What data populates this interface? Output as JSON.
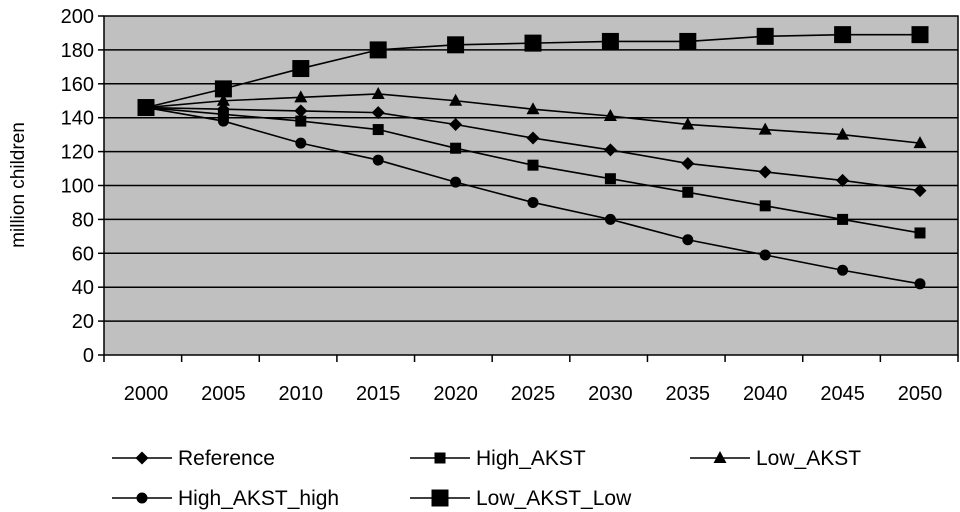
{
  "chart_data": {
    "type": "line",
    "title": "",
    "xlabel": "",
    "ylabel": "million children",
    "ylim": [
      0,
      200
    ],
    "yticks": [
      0,
      20,
      40,
      60,
      80,
      100,
      120,
      140,
      160,
      180,
      200
    ],
    "categories": [
      "2000",
      "2005",
      "2010",
      "2015",
      "2020",
      "2025",
      "2030",
      "2035",
      "2040",
      "2045",
      "2050"
    ],
    "grid": true,
    "plot_background": "#c0c0c0",
    "line_color": "#000000",
    "legend_position": "bottom",
    "series": [
      {
        "name": "Reference",
        "marker": "diamond",
        "values": [
          146,
          145,
          144,
          143,
          136,
          128,
          121,
          113,
          108,
          103,
          97
        ]
      },
      {
        "name": "High_AKST",
        "marker": "square-small",
        "values": [
          146,
          142,
          138,
          133,
          122,
          112,
          104,
          96,
          88,
          80,
          72
        ]
      },
      {
        "name": "Low_AKST",
        "marker": "triangle",
        "values": [
          146,
          150,
          152,
          154,
          150,
          145,
          141,
          136,
          133,
          130,
          125
        ]
      },
      {
        "name": "High_AKST_high",
        "marker": "circle",
        "values": [
          146,
          138,
          125,
          115,
          102,
          90,
          80,
          68,
          59,
          50,
          42
        ]
      },
      {
        "name": "Low_AKST_Low",
        "marker": "square-large",
        "values": [
          146,
          157,
          169,
          180,
          183,
          184,
          185,
          185,
          188,
          189,
          189
        ]
      }
    ]
  }
}
